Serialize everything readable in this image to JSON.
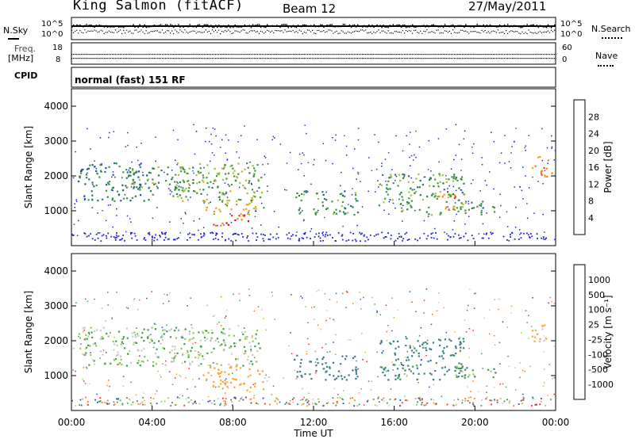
{
  "header": {
    "title": "King Salmon (fitACF)",
    "beam": "Beam 12",
    "date": "27/May/2011"
  },
  "strip": {
    "nsky_label": "N.Sky",
    "nsearch_label": "N.Search",
    "noise_top": "10^5",
    "noise_bottom": "10^0",
    "freq_label_1": "Freq.",
    "freq_label_2": "[MHz]",
    "freq_top": "18",
    "freq_bottom": "8",
    "nave_label": "Nave",
    "nave_top": "60",
    "nave_bottom": "0",
    "cpid_label": "CPID",
    "cpid_value": "normal (fast) 151 RF"
  },
  "panels": {
    "ylabel": "Slant Range [km]",
    "xlabel": "Time UT",
    "power_label": "Power [dB]",
    "velocity_label": "Velocity [m s⁻¹]"
  },
  "colors": {
    "power_scale": [
      "#1f1fd6",
      "#2050b0",
      "#2a7a56",
      "#3a9a3a",
      "#9ec230",
      "#f0a020",
      "#ff7a10",
      "#ff3010",
      "#e00000"
    ],
    "velocity_scale": [
      "#2a44b8",
      "#3a7a8a",
      "#3aa050",
      "#8ad040",
      "#c8c8c8",
      "#ffa030",
      "#ff7010",
      "#ff2010"
    ]
  },
  "chart_data": [
    {
      "type": "heatmap",
      "title": "Power [dB]",
      "ylabel": "Slant Range [km]",
      "xlabel": "",
      "ylim": [
        0,
        4500
      ],
      "yticks": [
        1000,
        2000,
        3000,
        4000
      ],
      "colorbar_ticks": [
        4,
        8,
        12,
        16,
        20,
        24,
        28
      ],
      "clim": [
        0,
        32
      ],
      "regions": [
        {
          "t0": 0.3,
          "t1": 4.0,
          "r0": 1300,
          "r1": 2400,
          "value": 8
        },
        {
          "t0": 2.5,
          "t1": 6.5,
          "r0": 1600,
          "r1": 2300,
          "value": 12
        },
        {
          "t0": 5.0,
          "t1": 9.5,
          "r0": 1300,
          "r1": 2400,
          "value": 14
        },
        {
          "t0": 6.5,
          "t1": 9.5,
          "r0": 900,
          "r1": 1300,
          "value": 18
        },
        {
          "t0": 7.0,
          "t1": 9.0,
          "r0": 600,
          "r1": 900,
          "value": 28
        },
        {
          "t0": 11.0,
          "t1": 14.2,
          "r0": 900,
          "r1": 1600,
          "value": 10
        },
        {
          "t0": 15.2,
          "t1": 19.5,
          "r0": 900,
          "r1": 2100,
          "value": 12
        },
        {
          "t0": 18.0,
          "t1": 19.0,
          "r0": 1000,
          "r1": 1500,
          "value": 24
        },
        {
          "t0": 19.0,
          "t1": 21.0,
          "r0": 900,
          "r1": 1300,
          "value": 10
        },
        {
          "t0": 22.8,
          "t1": 23.8,
          "r0": 2000,
          "r1": 2600,
          "value": 24
        }
      ]
    },
    {
      "type": "heatmap",
      "title": "Velocity [m s⁻¹]",
      "ylabel": "Slant Range [km]",
      "xlabel": "Time UT",
      "ylim": [
        0,
        4500
      ],
      "yticks": [
        1000,
        2000,
        3000,
        4000
      ],
      "colorbar_ticks": [
        1000,
        500,
        100,
        25,
        -25,
        -100,
        -500,
        -1000
      ],
      "clim": [
        -1000,
        1000
      ],
      "x_ticks": [
        "00:00",
        "04:00",
        "08:00",
        "12:00",
        "16:00",
        "20:00",
        "00:00"
      ],
      "regions": [
        {
          "t0": 0.3,
          "t1": 9.5,
          "r0": 1300,
          "r1": 2400,
          "value": 0
        },
        {
          "t0": 6.5,
          "t1": 9.5,
          "r0": 600,
          "r1": 1300,
          "value": -200
        },
        {
          "t0": 11.0,
          "t1": 14.2,
          "r0": 900,
          "r1": 1600,
          "value": 200
        },
        {
          "t0": 15.2,
          "t1": 19.5,
          "r0": 900,
          "r1": 2100,
          "value": 150
        },
        {
          "t0": 19.0,
          "t1": 21.0,
          "r0": 900,
          "r1": 1300,
          "value": 60
        },
        {
          "t0": 22.8,
          "t1": 23.8,
          "r0": 2000,
          "r1": 2600,
          "value": -150
        }
      ]
    }
  ]
}
